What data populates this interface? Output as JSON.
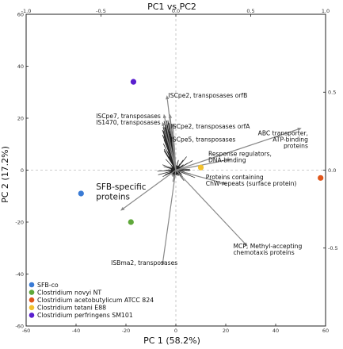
{
  "chart_data": {
    "type": "scatter",
    "title": "PC1 vs PC2",
    "xlabel": "PC 1 (58.2%)",
    "ylabel": "PC 2 (17.2%)",
    "xlim": [
      -60,
      60
    ],
    "ylim": [
      -60,
      60
    ],
    "xticks": [
      -60,
      -40,
      -20,
      0,
      20,
      40,
      60
    ],
    "yticks": [
      -60,
      -40,
      -20,
      0,
      20,
      40,
      60
    ],
    "top_axis_range": [
      -1.0,
      1.0
    ],
    "top_ticks": [
      "-1.0",
      "-0.5",
      "0.0",
      "0.5",
      "1.0"
    ],
    "right_ticks": [
      "0.5",
      "0.0",
      "-0.5"
    ],
    "grid": false,
    "origin_lines": "dashed",
    "legend_position": "bottom-left",
    "series": [
      {
        "name": "SFB-co",
        "color": "#3a7bd5",
        "x": -38,
        "y": -9
      },
      {
        "name": "Clostridium novyi NT",
        "color": "#5fa83a",
        "x": -18,
        "y": -20
      },
      {
        "name": "Clostridium acetobutylicum ATCC 824",
        "color": "#e0561b",
        "x": 58,
        "y": -3
      },
      {
        "name": "Clostridium tetani E88",
        "color": "#f2c12e",
        "x": 10,
        "y": 1
      },
      {
        "name": "Clostridium perfringens SM101",
        "color": "#5a1fcf",
        "x": -17,
        "y": 34
      }
    ],
    "loadings": [
      {
        "label": "ISCpe2, transposases orfB",
        "x": -0.06,
        "y": 0.48
      },
      {
        "label": "ISCpe7, transposases",
        "x": -0.08,
        "y": 0.36
      },
      {
        "label": "IS1470, transposases",
        "x": -0.09,
        "y": 0.31
      },
      {
        "label": "ISCpe2, transposases orfA",
        "x": -0.04,
        "y": 0.36
      },
      {
        "label": "ISCpe5, transposases",
        "x": -0.02,
        "y": 0.3
      },
      {
        "label": "ABC transporter, ATP-binding proteins",
        "x": 0.84,
        "y": 0.27
      },
      {
        "label": "Response regulators, DNA-binding",
        "x": 0.37,
        "y": 0.07
      },
      {
        "label": "Proteins containing ChW-repeats (surface protein)",
        "x": 0.34,
        "y": -0.09
      },
      {
        "label": "MCP, Methyl-accepting chemotaxis proteins",
        "x": 0.48,
        "y": -0.49
      },
      {
        "label": "ISBma2, transposases",
        "x": -0.09,
        "y": -0.61
      },
      {
        "label": "SFB-specific proteins",
        "x": -0.37,
        "y": -0.26
      }
    ],
    "annotations": [
      {
        "lines": [
          "ISCpe2, transposases orfB"
        ],
        "x": -3,
        "y": 28,
        "size": "small",
        "anchor": "start"
      },
      {
        "lines": [
          "ISCpe7, transposases",
          "IS1470, transposases"
        ],
        "x": -32,
        "y": 20,
        "size": "small",
        "anchor": "start"
      },
      {
        "lines": [
          "ISCpe2, transposases orfA"
        ],
        "x": -2,
        "y": 16,
        "size": "small",
        "anchor": "start"
      },
      {
        "lines": [
          "ISCpe5, transposases"
        ],
        "x": -2,
        "y": 11,
        "size": "small",
        "anchor": "start"
      },
      {
        "lines": [
          "ABC transporter,",
          "ATP-binding",
          "proteins"
        ],
        "x": 53,
        "y": 13.5,
        "size": "small",
        "anchor": "end"
      },
      {
        "lines": [
          "Response regulators,",
          "DNA-binding"
        ],
        "x": 13,
        "y": 5.5,
        "size": "small",
        "anchor": "start"
      },
      {
        "lines": [
          "Proteins containing",
          "ChW-repeats (surface protein)"
        ],
        "x": 12,
        "y": -3.5,
        "size": "small",
        "anchor": "start"
      },
      {
        "lines": [
          "MCP, Methyl-accepting",
          "chemotaxis proteins"
        ],
        "x": 23,
        "y": -30,
        "size": "small",
        "anchor": "start"
      },
      {
        "lines": [
          "ISBma2, transposases"
        ],
        "x": -26,
        "y": -36.5,
        "size": "small",
        "anchor": "start"
      },
      {
        "lines": [
          "SFB-specific",
          "proteins"
        ],
        "x": -32,
        "y": -7.5,
        "size": "big",
        "anchor": "start"
      }
    ]
  }
}
